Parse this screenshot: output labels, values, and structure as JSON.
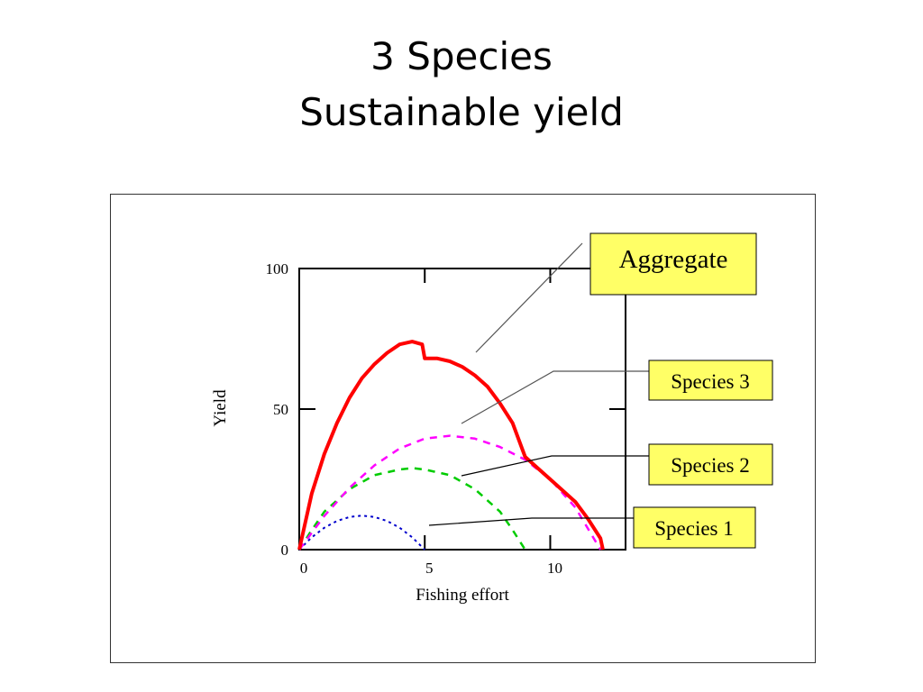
{
  "slide": {
    "title_line1": "3 Species",
    "title_line2": "Sustainable yield"
  },
  "chart_data": {
    "type": "line",
    "xlabel": "Fishing effort",
    "ylabel": "Yield",
    "xlim": [
      0,
      13
    ],
    "ylim": [
      0,
      100
    ],
    "x_ticks": [
      "0",
      "5",
      "10"
    ],
    "y_ticks": [
      "0",
      "50",
      "100"
    ],
    "grid": false,
    "series": [
      {
        "name": "Aggregate",
        "color": "#ff0000",
        "style": "solid",
        "x": [
          0,
          0.5,
          1,
          1.5,
          2,
          2.5,
          3,
          3.5,
          4,
          4.5,
          4.9,
          5.0,
          5.5,
          6,
          6.5,
          7,
          7.5,
          8,
          8.5,
          9,
          9.5,
          10,
          10.5,
          11,
          11.5,
          12,
          12.1
        ],
        "y": [
          0,
          20,
          34,
          45,
          54,
          61,
          66,
          70,
          73,
          74,
          73,
          68,
          68,
          67,
          65,
          62,
          58,
          52,
          45,
          33,
          29,
          25,
          21,
          17,
          11,
          4,
          0
        ]
      },
      {
        "name": "Species 3",
        "color": "#ff00ff",
        "style": "dashed",
        "x": [
          0,
          1,
          2,
          3,
          4,
          5,
          6,
          7,
          8,
          9,
          10,
          11,
          12
        ],
        "y": [
          0,
          12,
          22,
          30,
          36,
          39.5,
          40.5,
          39.5,
          36.5,
          32,
          25,
          15,
          0
        ]
      },
      {
        "name": "Species 2",
        "color": "#00cc00",
        "style": "dashed",
        "x": [
          0,
          0.5,
          1,
          2,
          3,
          4,
          4.5,
          5,
          6,
          7,
          8,
          8.5,
          9
        ],
        "y": [
          0,
          7,
          13.5,
          21.5,
          26.5,
          28.5,
          29,
          28.5,
          26.5,
          21.5,
          13.5,
          7,
          0
        ]
      },
      {
        "name": "Species 1",
        "color": "#0000cc",
        "style": "dotted",
        "x": [
          0,
          0.5,
          1,
          1.5,
          2,
          2.5,
          3,
          3.5,
          4,
          4.5,
          5
        ],
        "y": [
          0,
          4.4,
          7.8,
          10.2,
          11.6,
          12.1,
          11.6,
          10.2,
          7.8,
          4.4,
          0
        ]
      }
    ],
    "annotations": [
      "Aggregate",
      "Species 3",
      "Species 2",
      "Species 1"
    ]
  },
  "colors": {
    "callout_fill": "#ffff66",
    "callout_border": "#000000",
    "leader_line": "#555555"
  }
}
